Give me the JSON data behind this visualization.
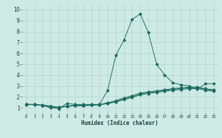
{
  "xlabel": "Humidex (Indice chaleur)",
  "xlim": [
    -0.5,
    23.5
  ],
  "ylim": [
    0.5,
    10.5
  ],
  "xtick_vals": [
    0,
    1,
    2,
    3,
    4,
    5,
    6,
    7,
    8,
    9,
    10,
    11,
    12,
    13,
    14,
    15,
    16,
    17,
    18,
    19,
    20,
    21,
    22,
    23
  ],
  "xtick_labels": [
    "0",
    "1",
    "2",
    "3",
    "4",
    "5",
    "6",
    "7",
    "8",
    "9",
    "10",
    "11",
    "12",
    "13",
    "14",
    "15",
    "16",
    "17",
    "18",
    "19",
    "20",
    "21",
    "22",
    "23"
  ],
  "ytick_vals": [
    1,
    2,
    3,
    4,
    5,
    6,
    7,
    8,
    9,
    10
  ],
  "ytick_labels": [
    "1",
    "2",
    "3",
    "4",
    "5",
    "6",
    "7",
    "8",
    "9",
    "10"
  ],
  "bg_color": "#ceeae5",
  "grid_color": "#b0d4cc",
  "line_color": "#1a6b5e",
  "lines": [
    {
      "x": [
        0,
        1,
        2,
        3,
        4,
        5,
        6,
        7,
        8,
        9,
        10,
        11,
        12,
        13,
        14,
        15,
        16,
        17,
        18,
        19,
        20,
        21,
        22,
        23
      ],
      "y": [
        1.3,
        1.3,
        1.2,
        1.0,
        0.9,
        1.4,
        1.3,
        1.3,
        1.3,
        1.3,
        2.6,
        5.8,
        7.2,
        9.1,
        9.6,
        7.9,
        5.0,
        4.0,
        3.3,
        3.1,
        3.0,
        2.7,
        3.2,
        3.2
      ]
    },
    {
      "x": [
        0,
        1,
        2,
        3,
        4,
        5,
        6,
        7,
        8,
        9,
        10,
        11,
        12,
        13,
        14,
        15,
        16,
        17,
        18,
        19,
        20,
        21,
        22,
        23
      ],
      "y": [
        1.3,
        1.3,
        1.2,
        1.1,
        1.0,
        1.15,
        1.2,
        1.2,
        1.25,
        1.28,
        1.45,
        1.65,
        1.9,
        2.1,
        2.35,
        2.45,
        2.55,
        2.65,
        2.75,
        2.82,
        2.88,
        2.9,
        2.75,
        2.65
      ]
    },
    {
      "x": [
        0,
        1,
        2,
        3,
        4,
        5,
        6,
        7,
        8,
        9,
        10,
        11,
        12,
        13,
        14,
        15,
        16,
        17,
        18,
        19,
        20,
        21,
        22,
        23
      ],
      "y": [
        1.3,
        1.3,
        1.25,
        1.15,
        1.05,
        1.15,
        1.22,
        1.22,
        1.27,
        1.3,
        1.42,
        1.58,
        1.82,
        2.0,
        2.25,
        2.38,
        2.48,
        2.58,
        2.68,
        2.76,
        2.82,
        2.84,
        2.68,
        2.58
      ]
    },
    {
      "x": [
        0,
        1,
        2,
        3,
        4,
        5,
        6,
        7,
        8,
        9,
        10,
        11,
        12,
        13,
        14,
        15,
        16,
        17,
        18,
        19,
        20,
        21,
        22,
        23
      ],
      "y": [
        1.28,
        1.28,
        1.22,
        1.12,
        1.02,
        1.12,
        1.18,
        1.18,
        1.23,
        1.26,
        1.38,
        1.52,
        1.74,
        1.94,
        2.18,
        2.3,
        2.4,
        2.5,
        2.6,
        2.68,
        2.74,
        2.76,
        2.6,
        2.5
      ]
    }
  ]
}
